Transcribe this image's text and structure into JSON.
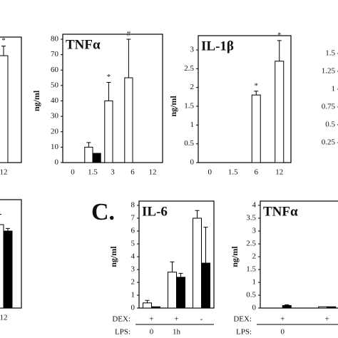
{
  "panel_label": "C.",
  "chart_data": [
    {
      "type": "bar",
      "categories": [
        "12"
      ],
      "ylim": [
        0,
        90
      ],
      "series": [
        {
          "color": "#ffffff",
          "values": [
            78
          ],
          "errors": [
            7
          ]
        }
      ],
      "annotations": [
        "*"
      ]
    },
    {
      "type": "bar",
      "title": "TNFα",
      "ylabel": "ng/ml",
      "categories": [
        "0",
        "1.5",
        "3",
        "6",
        "12"
      ],
      "ylim": [
        0,
        80
      ],
      "yticks": [
        0,
        10,
        20,
        30,
        40,
        50,
        60,
        70,
        80
      ],
      "series": [
        {
          "color": "#ffffff",
          "values": [
            0,
            10,
            40,
            55,
            0
          ],
          "errors": [
            0,
            3,
            12,
            25,
            0
          ]
        },
        {
          "color": "#000000",
          "values": [
            0,
            6,
            0,
            0,
            0
          ],
          "errors": [
            0,
            0,
            0,
            0,
            0
          ]
        }
      ],
      "annotations": [
        null,
        null,
        "*",
        "#",
        null
      ]
    },
    {
      "type": "bar",
      "title": "IL-1β",
      "ylabel": "ng/ml",
      "categories": [
        "0",
        "1.5",
        "6",
        "12"
      ],
      "ylim": [
        0,
        3
      ],
      "yticks": [
        0,
        0.5,
        1,
        1.5,
        2,
        2.5,
        3
      ],
      "series": [
        {
          "color": "#ffffff",
          "values": [
            0,
            0,
            1.8,
            2.7
          ],
          "errors": [
            0,
            0,
            0.1,
            0.55
          ]
        }
      ],
      "annotations": [
        null,
        null,
        "*",
        "*"
      ]
    },
    {
      "type": "bar",
      "ylim": [
        0,
        1.5
      ],
      "yticks": [
        0.25,
        0.5,
        0.75,
        1,
        1.25,
        1.5
      ],
      "categories": [],
      "series": []
    },
    {
      "type": "bar",
      "categories": [
        "12"
      ],
      "ylim": [
        0,
        8
      ],
      "series": [
        {
          "color": "#ffffff",
          "values": [
            6.5
          ],
          "errors": [
            0.8
          ]
        },
        {
          "color": "#000000",
          "values": [
            6
          ],
          "errors": [
            0.2
          ]
        }
      ]
    },
    {
      "type": "bar",
      "title": "IL-6",
      "ylabel": "ng/ml",
      "categories": [
        null,
        null,
        null
      ],
      "ylim": [
        0,
        8
      ],
      "yticks": [
        0,
        1,
        2,
        3,
        4,
        5,
        6,
        7,
        8
      ],
      "series": [
        {
          "color": "#ffffff",
          "values": [
            0.4,
            2.8,
            7
          ],
          "errors": [
            0.2,
            0.8,
            0.6
          ]
        },
        {
          "color": "#000000",
          "values": [
            0.1,
            2.4,
            3.5
          ],
          "errors": [
            0,
            0.3,
            2.8
          ]
        }
      ],
      "rows": [
        {
          "label": "DEX:",
          "values": [
            "+",
            "+",
            "-"
          ]
        },
        {
          "label": "LPS:",
          "values": [
            "0",
            "1h",
            null
          ]
        }
      ]
    },
    {
      "type": "bar",
      "title": "TNFα",
      "ylabel": "ng/ml",
      "categories": [
        null,
        null
      ],
      "ylim": [
        0,
        4
      ],
      "yticks": [
        0,
        0.5,
        1,
        1.5,
        2,
        2.5,
        3,
        3.5,
        4
      ],
      "series": [
        {
          "color": "#ffffff",
          "values": [
            0,
            0.05
          ],
          "errors": [
            0,
            0
          ]
        },
        {
          "color": "#000000",
          "values": [
            0.1,
            0.05
          ],
          "errors": [
            0.03,
            0
          ]
        }
      ],
      "rows": [
        {
          "label": "DEX:",
          "values": [
            "+",
            "+"
          ]
        },
        {
          "label": "LPS:",
          "values": [
            "0",
            null
          ]
        }
      ]
    }
  ]
}
